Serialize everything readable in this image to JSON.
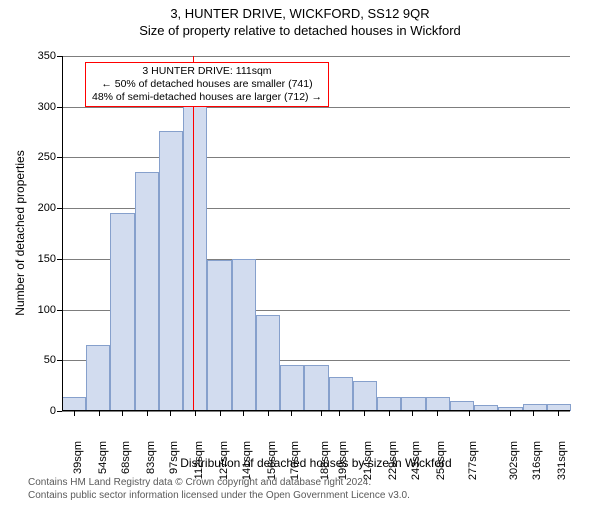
{
  "title_main": "3, HUNTER DRIVE, WICKFORD, SS12 9QR",
  "title_sub": "Size of property relative to detached houses in Wickford",
  "ylabel": "Number of detached properties",
  "xlabel": "Distribution of detached houses by size in Wickford",
  "annotation": {
    "line1": "3 HUNTER DRIVE: 111sqm",
    "line2": "← 50% of detached houses are smaller (741)",
    "line3": "48% of semi-detached houses are larger (712) →",
    "border_color": "#ff0000"
  },
  "footer": {
    "line1": "Contains HM Land Registry data © Crown copyright and database right 2024.",
    "line2": "Contains public sector information licensed under the Open Government Licence v3.0."
  },
  "chart": {
    "type": "histogram",
    "background_color": "#ffffff",
    "grid_color": "#7d7d7d",
    "axis_color": "#000000",
    "bar_fill": "#d2dcef",
    "bar_border": "#86a0cc",
    "refline_color": "#ff0000",
    "refline_x": 111,
    "xlim": [
      32,
      338
    ],
    "ylim": [
      0,
      350
    ],
    "ytick_step": 50,
    "yticks": [
      0,
      50,
      100,
      150,
      200,
      250,
      300,
      350
    ],
    "xticks": [
      "39sqm",
      "54sqm",
      "68sqm",
      "83sqm",
      "97sqm",
      "112sqm",
      "127sqm",
      "141sqm",
      "156sqm",
      "170sqm",
      "188sqm",
      "199sqm",
      "214sqm",
      "229sqm",
      "243sqm",
      "258sqm",
      "277sqm",
      "302sqm",
      "316sqm",
      "331sqm"
    ],
    "xtick_vals": [
      39,
      54,
      68,
      83,
      97,
      112,
      127,
      141,
      156,
      170,
      188,
      199,
      214,
      229,
      243,
      258,
      277,
      302,
      316,
      331
    ],
    "bin_width": 14.6,
    "bar_starts": [
      32,
      46.6,
      61.2,
      75.8,
      90.4,
      105,
      119.6,
      134.2,
      148.8,
      163.4,
      178,
      192.6,
      207.2,
      221.8,
      236.4,
      251,
      265.6,
      280.2,
      294.8,
      309.4,
      324
    ],
    "values": [
      14,
      65,
      195,
      236,
      276,
      302,
      149,
      150,
      95,
      45,
      45,
      34,
      30,
      14,
      14,
      14,
      10,
      6,
      4,
      7,
      7
    ],
    "title_fontsize": 13,
    "label_fontsize": 12,
    "tick_fontsize": 11
  }
}
